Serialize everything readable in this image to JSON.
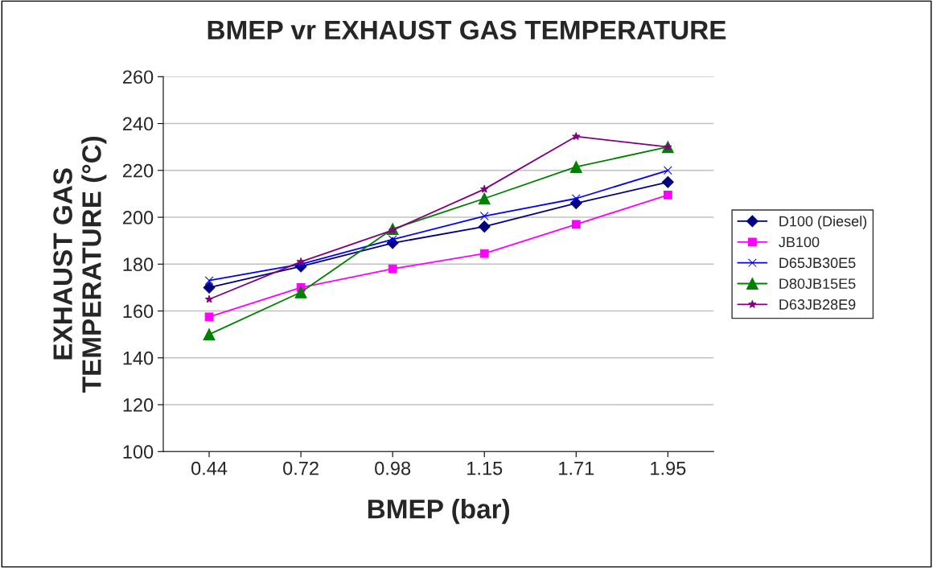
{
  "chart_data": {
    "type": "line",
    "title": "BMEP vr EXHAUST GAS TEMPERATURE",
    "xlabel": "BMEP (bar)",
    "ylabel": "EXHAUST GAS\nTEMPERATURE (°C)",
    "categories": [
      "0.44",
      "0.72",
      "0.98",
      "1.15",
      "1.71",
      "1.95"
    ],
    "series": [
      {
        "name": "D100 (Diesel)",
        "color": "#000080",
        "marker": "diamond",
        "values": [
          170,
          179,
          189,
          196,
          206,
          215
        ]
      },
      {
        "name": "JB100",
        "color": "#ff00ff",
        "marker": "square",
        "values": [
          157.5,
          170,
          178,
          184.5,
          197,
          209.5
        ]
      },
      {
        "name": "D65JB30E5",
        "color": "#0000ff",
        "marker": "cross",
        "values": [
          173,
          180,
          190.5,
          200.5,
          208,
          220
        ]
      },
      {
        "name": "D80JB15E5",
        "color": "#008000",
        "marker": "triangle",
        "values": [
          150,
          168,
          195,
          208,
          221.5,
          230
        ]
      },
      {
        "name": "D63JB28E9",
        "color": "#800080",
        "marker": "star",
        "values": [
          165,
          181,
          194.5,
          212,
          234.5,
          230
        ]
      }
    ],
    "ylim": [
      100,
      260
    ],
    "yticks": [
      100,
      120,
      140,
      160,
      180,
      200,
      220,
      240,
      260
    ],
    "grid": "y",
    "legend": "right"
  }
}
